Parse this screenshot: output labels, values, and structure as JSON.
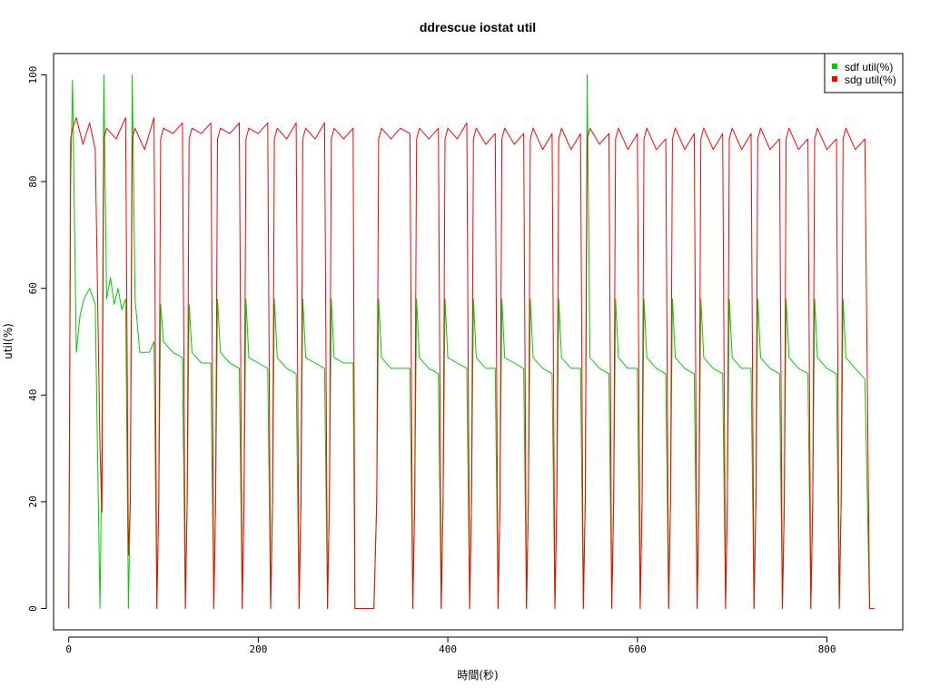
{
  "chart_data": {
    "type": "line",
    "title": "ddrescue iostat util",
    "xlabel": "時間(秒)",
    "ylabel": "util(%)",
    "xlim": [
      -16,
      880
    ],
    "ylim": [
      -4,
      104
    ],
    "xticks": [
      "0",
      "200",
      "400",
      "600",
      "800"
    ],
    "yticks": [
      "0",
      "20",
      "40",
      "60",
      "80",
      "100"
    ],
    "legend_position": "top-right",
    "grid": false,
    "series": [
      {
        "name": "sdf util(%)",
        "color": "#00cc00",
        "x": [
          0,
          2,
          4,
          8,
          12,
          16,
          22,
          28,
          33,
          35,
          37,
          40,
          44,
          48,
          52,
          56,
          60,
          63,
          65,
          67,
          70,
          75,
          85,
          90,
          93,
          95,
          97,
          100,
          110,
          120,
          123,
          125,
          127,
          130,
          140,
          150,
          153,
          155,
          157,
          160,
          170,
          180,
          183,
          185,
          187,
          190,
          200,
          210,
          213,
          215,
          217,
          220,
          230,
          240,
          243,
          245,
          247,
          250,
          260,
          270,
          273,
          275,
          277,
          280,
          290,
          300,
          302,
          305,
          318,
          322,
          325,
          327,
          330,
          340,
          350,
          360,
          363,
          365,
          367,
          370,
          380,
          390,
          393,
          395,
          397,
          400,
          410,
          420,
          423,
          425,
          427,
          430,
          440,
          450,
          453,
          455,
          457,
          460,
          470,
          480,
          483,
          485,
          487,
          490,
          500,
          510,
          513,
          515,
          517,
          520,
          530,
          540,
          543,
          545,
          547,
          550,
          560,
          570,
          573,
          575,
          577,
          580,
          590,
          600,
          603,
          605,
          607,
          610,
          620,
          630,
          633,
          635,
          637,
          640,
          650,
          660,
          663,
          665,
          667,
          670,
          680,
          690,
          693,
          695,
          697,
          700,
          710,
          720,
          723,
          725,
          727,
          730,
          740,
          750,
          753,
          755,
          757,
          760,
          770,
          780,
          783,
          785,
          787,
          790,
          800,
          810,
          813,
          815,
          817,
          820,
          830,
          840,
          845,
          848,
          850
        ],
        "values": [
          0,
          80,
          99,
          48,
          55,
          58,
          60,
          57,
          0,
          30,
          100,
          58,
          62,
          57,
          60,
          56,
          58,
          0,
          20,
          100,
          58,
          48,
          48,
          50,
          0,
          20,
          57,
          50,
          48,
          47,
          0,
          20,
          57,
          48,
          46,
          46,
          0,
          20,
          58,
          48,
          46,
          45,
          0,
          20,
          58,
          47,
          46,
          45,
          0,
          20,
          58,
          47,
          45,
          44,
          0,
          20,
          58,
          47,
          46,
          45,
          0,
          20,
          58,
          47,
          46,
          46,
          0,
          0,
          0,
          0,
          20,
          58,
          47,
          45,
          45,
          45,
          0,
          20,
          58,
          47,
          45,
          44,
          0,
          20,
          58,
          47,
          46,
          45,
          0,
          20,
          58,
          47,
          45,
          45,
          0,
          20,
          58,
          47,
          46,
          45,
          0,
          20,
          58,
          47,
          45,
          44,
          0,
          20,
          58,
          47,
          45,
          45,
          0,
          20,
          100,
          47,
          45,
          44,
          0,
          20,
          58,
          47,
          45,
          45,
          0,
          20,
          58,
          47,
          45,
          44,
          0,
          20,
          58,
          47,
          45,
          44,
          0,
          20,
          58,
          47,
          45,
          44,
          0,
          20,
          58,
          47,
          45,
          45,
          0,
          20,
          58,
          47,
          45,
          44,
          0,
          20,
          58,
          47,
          45,
          44,
          0,
          20,
          58,
          47,
          45,
          44,
          0,
          20,
          58,
          47,
          45,
          43,
          0,
          0,
          0
        ]
      },
      {
        "name": "sdg util(%)",
        "color": "#ff0000",
        "x": [
          0,
          2,
          4,
          8,
          15,
          22,
          28,
          33,
          35,
          37,
          40,
          50,
          60,
          63,
          65,
          67,
          70,
          80,
          90,
          93,
          95,
          97,
          100,
          110,
          120,
          123,
          125,
          127,
          130,
          140,
          150,
          153,
          155,
          157,
          160,
          170,
          180,
          183,
          185,
          187,
          190,
          200,
          210,
          213,
          215,
          217,
          220,
          230,
          240,
          243,
          245,
          247,
          250,
          260,
          270,
          273,
          275,
          277,
          280,
          290,
          300,
          302,
          305,
          318,
          322,
          325,
          327,
          330,
          340,
          350,
          360,
          363,
          365,
          367,
          370,
          380,
          390,
          393,
          395,
          397,
          400,
          410,
          420,
          423,
          425,
          427,
          430,
          440,
          450,
          453,
          455,
          457,
          460,
          470,
          480,
          483,
          485,
          487,
          490,
          500,
          510,
          513,
          515,
          517,
          520,
          530,
          540,
          543,
          545,
          547,
          550,
          560,
          570,
          573,
          575,
          577,
          580,
          590,
          600,
          603,
          605,
          607,
          610,
          620,
          630,
          633,
          635,
          637,
          640,
          650,
          660,
          663,
          665,
          667,
          670,
          680,
          690,
          693,
          695,
          697,
          700,
          710,
          720,
          723,
          725,
          727,
          730,
          740,
          750,
          753,
          755,
          757,
          760,
          770,
          780,
          783,
          785,
          787,
          790,
          800,
          810,
          813,
          815,
          817,
          820,
          830,
          840,
          845,
          848,
          850
        ],
        "values": [
          0,
          88,
          90,
          92,
          87,
          91,
          86,
          30,
          18,
          88,
          90,
          88,
          92,
          10,
          20,
          88,
          90,
          86,
          92,
          0,
          20,
          88,
          90,
          89,
          91,
          0,
          20,
          88,
          90,
          89,
          91,
          0,
          20,
          88,
          90,
          89,
          91,
          0,
          20,
          88,
          90,
          89,
          91,
          0,
          20,
          88,
          90,
          88,
          91,
          0,
          20,
          88,
          90,
          88,
          91,
          0,
          20,
          88,
          90,
          88,
          90,
          0,
          0,
          0,
          0,
          20,
          88,
          90,
          88,
          90,
          89,
          0,
          20,
          88,
          90,
          88,
          90,
          0,
          20,
          88,
          90,
          88,
          91,
          0,
          20,
          88,
          90,
          87,
          89,
          0,
          20,
          88,
          90,
          87,
          89,
          0,
          20,
          88,
          90,
          86,
          89,
          0,
          20,
          88,
          90,
          86,
          89,
          0,
          20,
          88,
          90,
          87,
          89,
          0,
          20,
          88,
          90,
          86,
          89,
          0,
          20,
          88,
          90,
          86,
          88,
          0,
          20,
          88,
          90,
          86,
          89,
          0,
          20,
          88,
          90,
          86,
          89,
          0,
          20,
          88,
          90,
          86,
          89,
          0,
          20,
          88,
          90,
          86,
          88,
          0,
          20,
          88,
          90,
          86,
          88,
          0,
          20,
          88,
          90,
          86,
          88,
          0,
          20,
          88,
          90,
          86,
          88,
          0,
          0,
          0
        ]
      }
    ]
  }
}
